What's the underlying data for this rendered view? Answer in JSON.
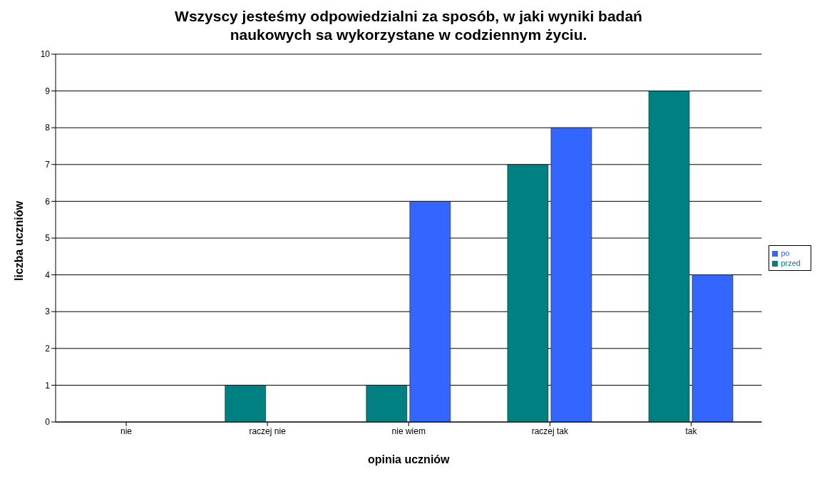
{
  "chart_data": {
    "type": "bar",
    "title": "Wszyscy jesteśmy odpowiedzialni za sposób, w jaki wyniki badań naukowych sa wykorzystane w codziennym życiu.",
    "xlabel": "opinia uczniów",
    "ylabel": "liczba uczniów",
    "categories": [
      "nie",
      "raczej nie",
      "nie wiem",
      "raczej tak",
      "tak"
    ],
    "series": [
      {
        "name": "przed",
        "color": "#008080",
        "values": [
          0,
          1,
          1,
          7,
          9
        ]
      },
      {
        "name": "po",
        "color": "#3366ff",
        "values": [
          0,
          0,
          6,
          8,
          4
        ]
      }
    ],
    "ylim": [
      0,
      10
    ],
    "yticks": [
      0,
      1,
      2,
      3,
      4,
      5,
      6,
      7,
      8,
      9,
      10
    ],
    "grid": "y",
    "legend": "right"
  }
}
